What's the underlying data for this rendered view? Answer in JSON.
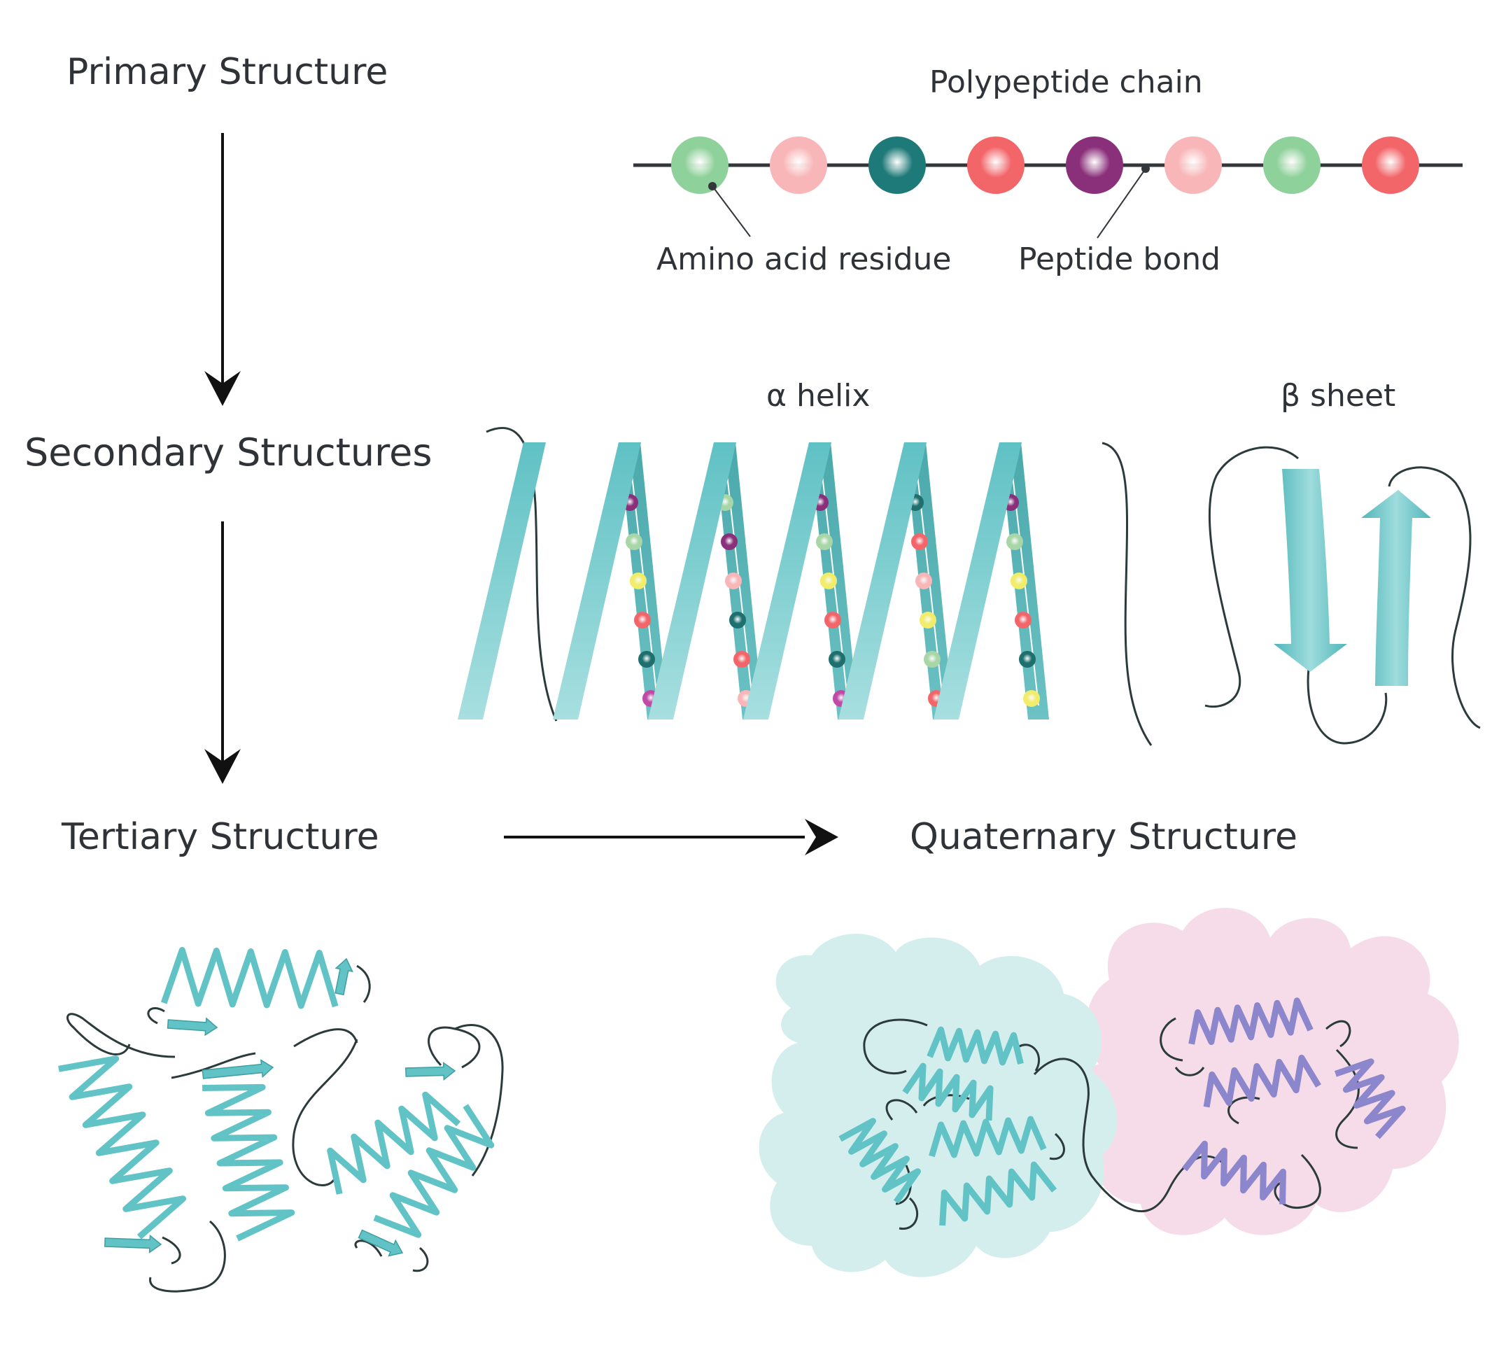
{
  "labels": {
    "primary": "Primary Structure",
    "secondary": "Secondary Structures",
    "tertiary": "Tertiary Structure",
    "quaternary": "Quaternary Structure",
    "polypeptide": "Polypeptide chain",
    "amino_acid": "Amino acid residue",
    "peptide_bond": "Peptide bond",
    "alpha_helix": "α helix",
    "beta_sheet": "β sheet"
  },
  "colors": {
    "ribbon": "#62c3c6",
    "ribbon_dark": "#3e9ea1",
    "ribbon_light": "#a6dfe0",
    "subunit_a_blob": "#d4eeee",
    "subunit_b_blob": "#f5dce8",
    "subunit_b_ribbon": "#8c86cc",
    "text": "#2f3338",
    "chain_line": "#33373c"
  },
  "chain_residue_colors": [
    "#8fd19a",
    "#f8b6b8",
    "#1e7a78",
    "#f2666a",
    "#8a2f7a",
    "#f8b6b8",
    "#8fd19a",
    "#f2666a"
  ],
  "helix_bead_colors": [
    [
      "#f8b6b8",
      "#8a2f7a",
      "#a8d6a6",
      "#f1ec6a",
      "#f2666a",
      "#1e6f6e",
      "#c04aa6"
    ],
    [
      "#a8d6a6",
      "#a8d6a6",
      "#8a2f7a",
      "#f8b6b8",
      "#1e6f6e",
      "#f2666a",
      "#f8b6b8"
    ],
    [
      "#f2666a",
      "#8a2f7a",
      "#a8d6a6",
      "#f1ec6a",
      "#f2666a",
      "#1e6f6e",
      "#c04aa6"
    ],
    [
      "#c04aa6",
      "#1e6f6e",
      "#f2666a",
      "#f8b6b8",
      "#f1ec6a",
      "#a8d6a6",
      "#f2666a"
    ],
    [
      "#f8b6b8",
      "#8a2f7a",
      "#a8d6a6",
      "#f1ec6a",
      "#f2666a",
      "#1e6f6e",
      "#f1ec6a"
    ]
  ]
}
